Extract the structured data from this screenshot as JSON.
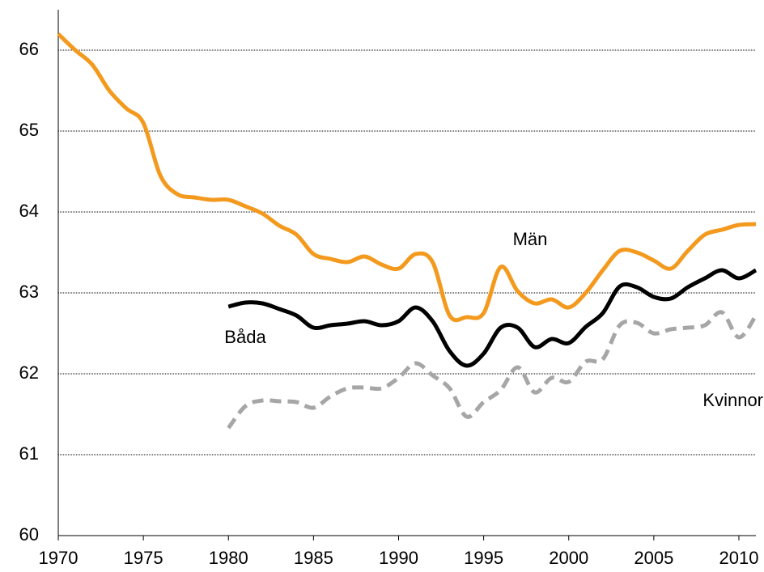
{
  "chart_data": {
    "type": "line",
    "x": [
      1970,
      1971,
      1972,
      1973,
      1974,
      1975,
      1976,
      1977,
      1978,
      1979,
      1980,
      1981,
      1982,
      1983,
      1984,
      1985,
      1986,
      1987,
      1988,
      1989,
      1990,
      1991,
      1992,
      1993,
      1994,
      1995,
      1996,
      1997,
      1998,
      1999,
      2000,
      2001,
      2002,
      2003,
      2004,
      2005,
      2006,
      2007,
      2008,
      2009,
      2010,
      2011
    ],
    "series": [
      {
        "name": "Män",
        "color": "#f39a1e",
        "style": "solid",
        "values": [
          66.2,
          66.0,
          65.82,
          65.5,
          65.28,
          65.1,
          64.45,
          64.22,
          64.18,
          64.15,
          64.15,
          64.07,
          63.98,
          63.83,
          63.72,
          63.48,
          63.42,
          63.38,
          63.45,
          63.35,
          63.3,
          63.48,
          63.38,
          62.72,
          62.7,
          62.75,
          63.32,
          63.02,
          62.87,
          62.92,
          62.82,
          63.0,
          63.28,
          63.52,
          63.5,
          63.4,
          63.3,
          63.52,
          63.72,
          63.78,
          63.84,
          63.85
        ]
      },
      {
        "name": "Båda",
        "color": "#000000",
        "style": "solid",
        "values": [
          null,
          null,
          null,
          null,
          null,
          null,
          null,
          null,
          null,
          null,
          62.83,
          62.88,
          62.87,
          62.8,
          62.72,
          62.57,
          62.6,
          62.62,
          62.65,
          62.6,
          62.65,
          62.82,
          62.65,
          62.28,
          62.1,
          62.25,
          62.57,
          62.57,
          62.33,
          62.43,
          62.38,
          62.58,
          62.75,
          63.08,
          63.07,
          62.95,
          62.93,
          63.07,
          63.18,
          63.28,
          63.18,
          63.28
        ]
      },
      {
        "name": "Kvinnor",
        "color": "#a6a6a6",
        "style": "dashed",
        "values": [
          null,
          null,
          null,
          null,
          null,
          null,
          null,
          null,
          null,
          null,
          61.33,
          61.6,
          61.67,
          61.66,
          61.65,
          61.58,
          61.72,
          61.82,
          61.83,
          61.82,
          61.95,
          62.13,
          61.98,
          61.82,
          61.47,
          61.65,
          61.8,
          62.08,
          61.77,
          61.95,
          61.9,
          62.15,
          62.18,
          62.6,
          62.63,
          62.5,
          62.55,
          62.57,
          62.6,
          62.76,
          62.45,
          62.72
        ]
      }
    ],
    "xlim": [
      1970,
      2011
    ],
    "xticks": [
      1970,
      1975,
      1980,
      1985,
      1990,
      1995,
      2000,
      2005,
      2010
    ],
    "ylim": [
      60,
      66.5
    ],
    "yticks": [
      60,
      61,
      62,
      63,
      64,
      65,
      66
    ],
    "grid": true
  }
}
